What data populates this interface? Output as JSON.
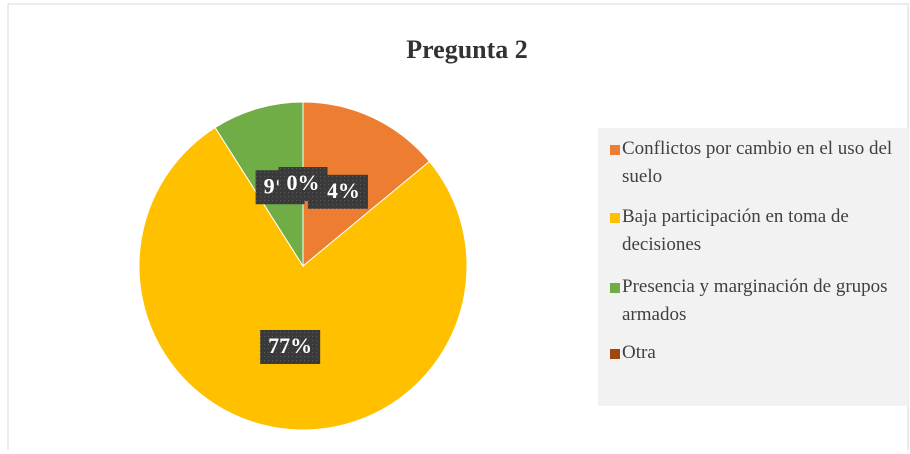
{
  "chart_data": {
    "type": "pie",
    "title": "Pregunta 2",
    "categories": [
      "Conflictos por cambio en el uso del suelo",
      "Baja participación en toma de decisiones",
      "Presencia y marginación de grupos armados",
      "Otra"
    ],
    "values": [
      14,
      77,
      9,
      0
    ],
    "value_labels": [
      "14%",
      "77%",
      "9%",
      "0%"
    ],
    "colors": [
      "#ed7d31",
      "#ffc000",
      "#70ad47",
      "#9e480e"
    ],
    "legend": "right"
  }
}
